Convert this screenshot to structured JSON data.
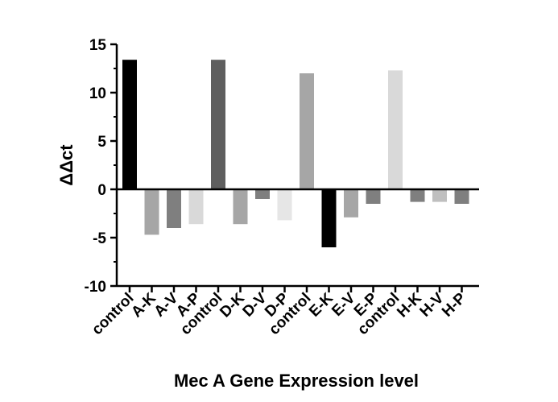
{
  "chart_data": {
    "type": "bar",
    "title": "",
    "xlabel": "Mec A Gene Expression level",
    "ylabel": "ΔΔct",
    "ylim": [
      -10,
      15
    ],
    "yticks": [
      15,
      10,
      5,
      0,
      -5,
      -10
    ],
    "tick_labels": [
      "15",
      "10",
      "5",
      "0",
      "-5",
      "-10"
    ],
    "grid": false,
    "legend": "none",
    "categories": [
      "control",
      "A-K",
      "A-V",
      "A-P",
      "control",
      "D-K",
      "D-V",
      "D-P",
      "control",
      "E-K",
      "E-V",
      "E-P",
      "control",
      "H-K",
      "H-V",
      "H-P"
    ],
    "values": [
      13.4,
      -4.7,
      -4.0,
      -3.6,
      13.4,
      -3.6,
      -1.0,
      -3.2,
      12.0,
      -6.0,
      -2.9,
      -1.5,
      12.3,
      -1.3,
      -1.3,
      -1.5
    ],
    "colors": [
      "#000000",
      "#a6a6a6",
      "#7f7f7f",
      "#d9d9d9",
      "#5f5f5f",
      "#a6a6a6",
      "#7f7f7f",
      "#e6e6e6",
      "#a6a6a6",
      "#000000",
      "#a6a6a6",
      "#7f7f7f",
      "#d9d9d9",
      "#7f7f7f",
      "#bfbfbf",
      "#7f7f7f"
    ]
  }
}
